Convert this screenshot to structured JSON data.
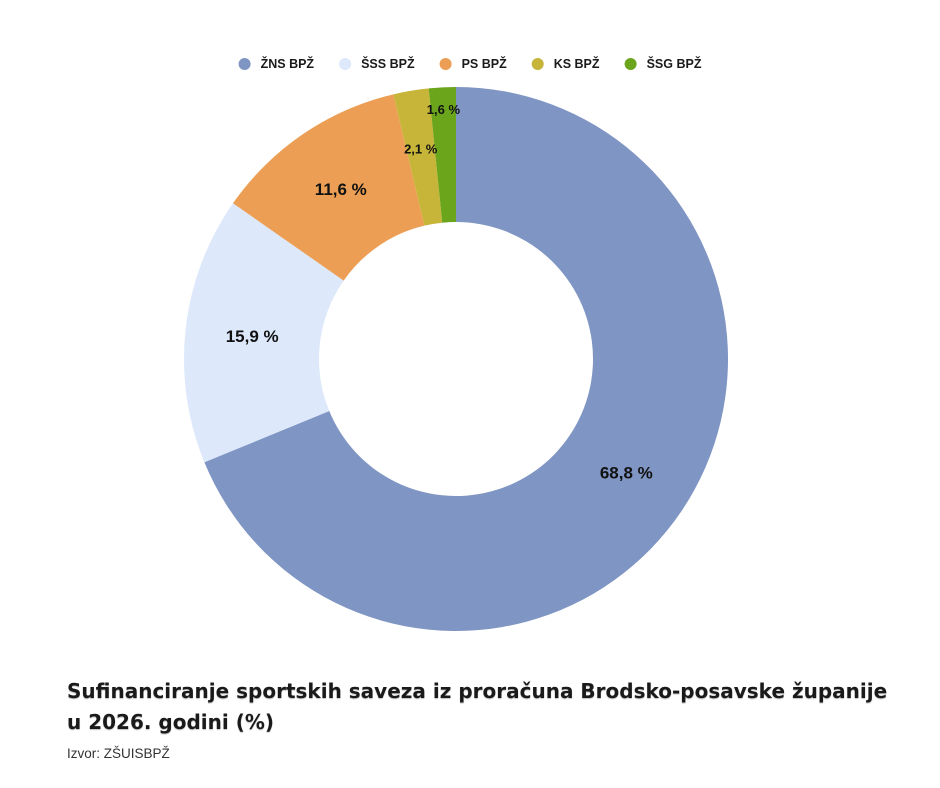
{
  "chart_data": {
    "type": "pie",
    "donut": true,
    "categories": [
      "ŽNS BPŽ",
      "ŠSS BPŽ",
      "PS BPŽ",
      "KS BPŽ",
      "ŠSG BPŽ"
    ],
    "values": [
      68.8,
      15.9,
      11.6,
      2.1,
      1.6
    ],
    "labels": [
      "68,8 %",
      "15,9 %",
      "11,6 %",
      "2,1 %",
      "1,6 %"
    ],
    "colors": [
      "#7f95c3",
      "#dde8fb",
      "#ec9f54",
      "#c7b53a",
      "#6aa51c"
    ],
    "legend_position": "top",
    "unit": "%"
  },
  "caption": {
    "title": "Sufinanciranje sportskih saveza iz proračuna Brodsko-posavske županije u 2026. godini (%)",
    "source": "Izvor: ZŠUISBPŽ"
  }
}
